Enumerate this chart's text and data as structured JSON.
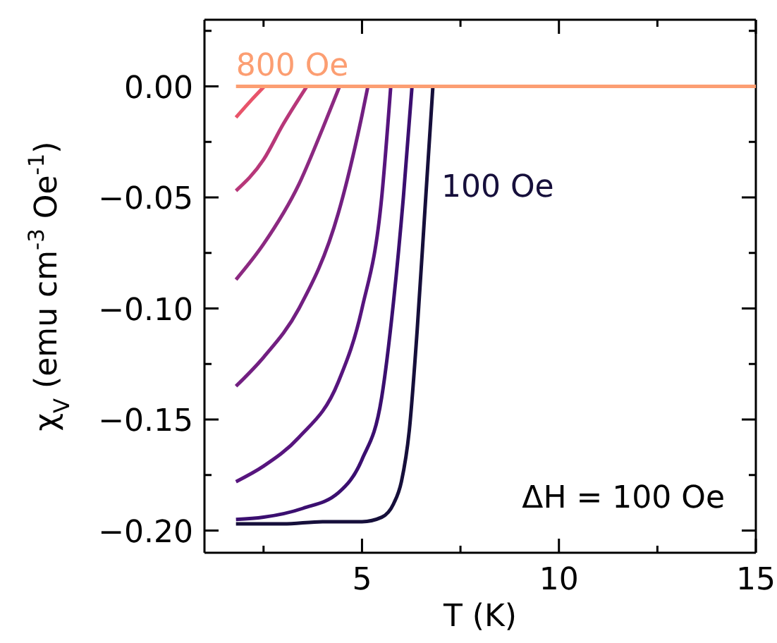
{
  "chart_data": {
    "type": "line",
    "xlabel": "T (K)",
    "ylabel": "χ$_{V}$ (emu cm$^{-3}$ Oe$^{-1}$)",
    "xlim": [
      1,
      15
    ],
    "ylim": [
      -0.21,
      0.03
    ],
    "xticks": [
      {
        "value": 2.5,
        "label": null
      },
      5,
      {
        "value": 7.5,
        "label": null
      },
      10,
      {
        "value": 12.5,
        "label": null
      },
      15
    ],
    "yticks": [
      {
        "value": 0.025,
        "label": null
      },
      {
        "value": 0,
        "label": "0.00"
      },
      {
        "value": -0.025,
        "label": null
      },
      {
        "value": -0.05,
        "label": "−0.05"
      },
      {
        "value": -0.075,
        "label": null
      },
      {
        "value": -0.1,
        "label": "−0.10"
      },
      {
        "value": -0.125,
        "label": null
      },
      {
        "value": -0.15,
        "label": "−0.15"
      },
      {
        "value": -0.175,
        "label": null
      },
      {
        "value": -0.2,
        "label": "−0.20"
      }
    ],
    "marker": "none",
    "line_style": "solid",
    "annotations": [
      "ΔH = 100 Oe"
    ],
    "series": [
      {
        "name": "100 Oe",
        "color": "#160f3b",
        "x": [
          1.8,
          3,
          4,
          5,
          5.5,
          5.8,
          6.0,
          6.2,
          6.4,
          6.6,
          6.8
        ],
        "values": [
          -0.197,
          -0.197,
          -0.196,
          -0.196,
          -0.194,
          -0.188,
          -0.178,
          -0.155,
          -0.11,
          -0.055,
          0
        ]
      },
      {
        "color": "#3b0f70",
        "x": [
          1.8,
          2.5,
          3.5,
          4.4,
          5.0,
          5.5,
          5.8,
          6.05,
          6.27
        ],
        "values": [
          -0.195,
          -0.194,
          -0.19,
          -0.183,
          -0.168,
          -0.14,
          -0.097,
          -0.05,
          0
        ]
      },
      {
        "color": "#57157e",
        "x": [
          1.8,
          2.5,
          3.4,
          4.4,
          5.0,
          5.5,
          5.73
        ],
        "values": [
          -0.178,
          -0.171,
          -0.158,
          -0.133,
          -0.1,
          -0.05,
          0
        ]
      },
      {
        "color": "#721f81",
        "x": [
          1.8,
          2.5,
          3.4,
          4.4,
          5.0,
          5.15
        ],
        "values": [
          -0.135,
          -0.122,
          -0.1,
          -0.057,
          -0.013,
          0
        ]
      },
      {
        "color": "#8c2981",
        "x": [
          1.8,
          2.5,
          3.4,
          4.0,
          4.43
        ],
        "values": [
          -0.087,
          -0.071,
          -0.044,
          -0.019,
          0
        ]
      },
      {
        "color": "#b73779",
        "x": [
          1.8,
          2.5,
          3.0,
          3.6
        ],
        "values": [
          -0.047,
          -0.033,
          -0.017,
          0
        ]
      },
      {
        "color": "#e8546a",
        "x": [
          1.8,
          2.2,
          2.52
        ],
        "values": [
          -0.014,
          -0.006,
          0
        ]
      },
      {
        "name": "800 Oe",
        "color": "#fc9e72",
        "x": [
          1.8,
          15
        ],
        "values": [
          0,
          0
        ]
      }
    ]
  }
}
